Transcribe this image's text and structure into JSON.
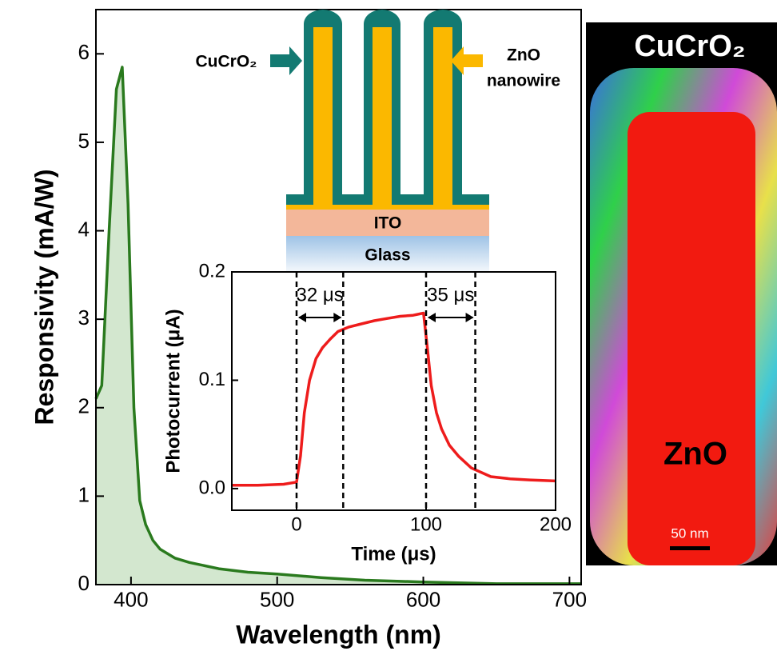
{
  "chart_data": [
    {
      "type": "area",
      "xlabel": "Wavelength (nm)",
      "ylabel": "Responsivity (mA/W)",
      "x": [
        376,
        380,
        385,
        390,
        394,
        398,
        402,
        406,
        410,
        415,
        420,
        430,
        440,
        460,
        480,
        500,
        530,
        560,
        600,
        650,
        700,
        708
      ],
      "values": [
        2.1,
        2.25,
        4.0,
        5.6,
        5.85,
        4.3,
        2.0,
        0.95,
        0.68,
        0.5,
        0.4,
        0.3,
        0.25,
        0.18,
        0.14,
        0.12,
        0.08,
        0.05,
        0.03,
        0.01,
        0.01,
        0.01
      ],
      "color": "#2a7a1e",
      "fill_color": "#d3e7cf",
      "xlim": [
        376,
        708
      ],
      "ylim": [
        0,
        6.5
      ],
      "xticks": [
        400,
        500,
        600,
        700
      ],
      "yticks": [
        0,
        1,
        2,
        3,
        4,
        5,
        6
      ]
    },
    {
      "type": "line",
      "xlabel": "Time (μs)",
      "ylabel": "Photocurrent (μA)",
      "x": [
        -50,
        -30,
        -10,
        0,
        3,
        6,
        10,
        15,
        20,
        26,
        32,
        40,
        50,
        60,
        70,
        80,
        90,
        98,
        101,
        104,
        108,
        112,
        118,
        125,
        135,
        150,
        165,
        180,
        200
      ],
      "values": [
        0.003,
        0.003,
        0.004,
        0.006,
        0.03,
        0.07,
        0.1,
        0.12,
        0.13,
        0.138,
        0.145,
        0.149,
        0.152,
        0.155,
        0.157,
        0.159,
        0.16,
        0.162,
        0.13,
        0.095,
        0.07,
        0.055,
        0.04,
        0.03,
        0.019,
        0.011,
        0.009,
        0.008,
        0.007
      ],
      "color": "#ee1c1c",
      "xlim": [
        -50,
        200
      ],
      "ylim": [
        -0.02,
        0.2
      ],
      "xticks": [
        0,
        100,
        200
      ],
      "yticks": [
        {
          "value": 0,
          "label": "0.0"
        },
        0.1,
        0.2
      ],
      "vlines": [
        0,
        36,
        100,
        138
      ],
      "annotations": [
        "32 μs",
        "35 μs"
      ]
    }
  ],
  "diagram": {
    "shell_label": "CuCrO₂",
    "core_label": [
      "ZnO",
      "nanowire"
    ],
    "layers": [
      "ITO",
      "Glass"
    ]
  },
  "micrograph": {
    "title": "CuCrO₂",
    "core_label": "ZnO",
    "scale_label": "50 nm"
  }
}
